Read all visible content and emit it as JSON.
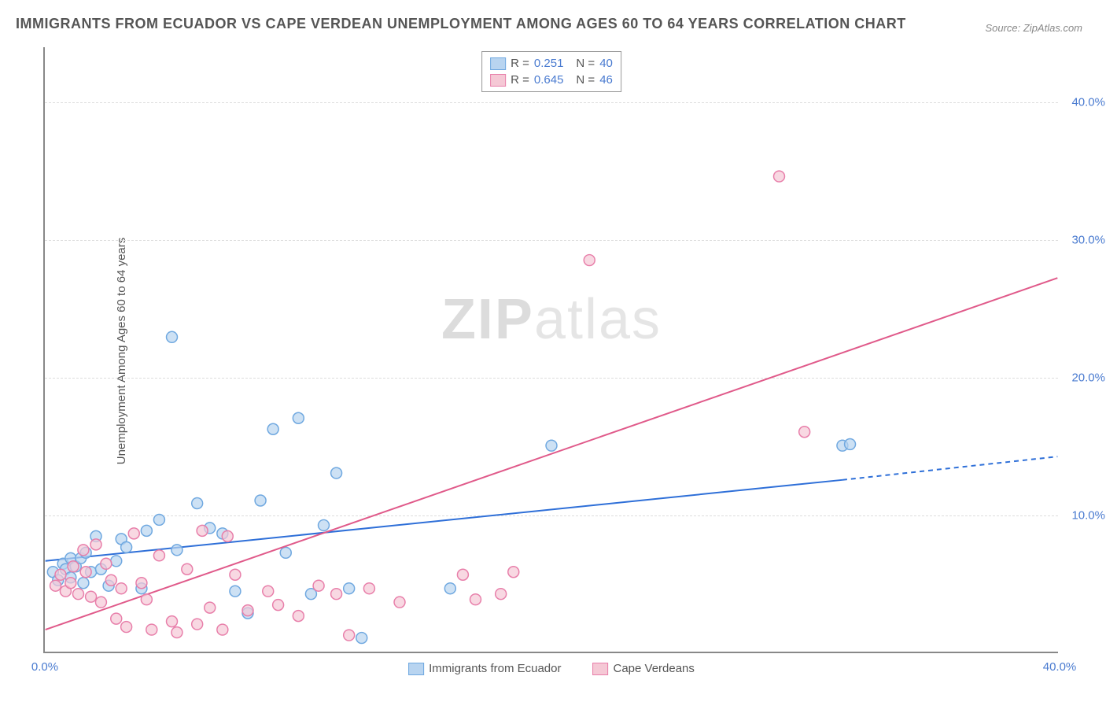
{
  "title": "IMMIGRANTS FROM ECUADOR VS CAPE VERDEAN UNEMPLOYMENT AMONG AGES 60 TO 64 YEARS CORRELATION CHART",
  "source": "Source: ZipAtlas.com",
  "y_axis_label": "Unemployment Among Ages 60 to 64 years",
  "watermark_bold": "ZIP",
  "watermark_rest": "atlas",
  "chart": {
    "type": "scatter",
    "xlim": [
      0,
      40
    ],
    "ylim": [
      0,
      44
    ],
    "x_ticks": [
      0,
      40
    ],
    "x_tick_labels": [
      "0.0%",
      "40.0%"
    ],
    "y_ticks": [
      10,
      20,
      30,
      40
    ],
    "y_tick_labels": [
      "10.0%",
      "20.0%",
      "30.0%",
      "40.0%"
    ],
    "background_color": "#ffffff",
    "grid_color": "#dddddd",
    "marker_radius": 7,
    "marker_stroke_width": 1.5,
    "line_width": 2
  },
  "series": [
    {
      "name": "Immigrants from Ecuador",
      "marker_fill": "#b8d4f0",
      "marker_stroke": "#6fa8e0",
      "line_color": "#2e6fd8",
      "R": "0.251",
      "N": "40",
      "trend": {
        "x1": 0,
        "y1": 6.6,
        "x2": 31.5,
        "y2": 12.5,
        "dash_from_x": 31.5,
        "dash_to_x": 40,
        "dash_to_y": 14.2
      },
      "points": [
        [
          0.3,
          5.8
        ],
        [
          0.5,
          5.2
        ],
        [
          0.7,
          6.4
        ],
        [
          0.8,
          6.0
        ],
        [
          1.0,
          6.8
        ],
        [
          1.0,
          5.4
        ],
        [
          1.2,
          6.2
        ],
        [
          1.4,
          6.8
        ],
        [
          1.5,
          5.0
        ],
        [
          1.6,
          7.2
        ],
        [
          1.8,
          5.8
        ],
        [
          2.0,
          8.4
        ],
        [
          2.2,
          6.0
        ],
        [
          2.5,
          4.8
        ],
        [
          2.8,
          6.6
        ],
        [
          3.0,
          8.2
        ],
        [
          3.2,
          7.6
        ],
        [
          3.8,
          4.6
        ],
        [
          4.0,
          8.8
        ],
        [
          4.5,
          9.6
        ],
        [
          5.0,
          22.9
        ],
        [
          5.2,
          7.4
        ],
        [
          6.0,
          10.8
        ],
        [
          6.5,
          9.0
        ],
        [
          7.0,
          8.6
        ],
        [
          7.5,
          4.4
        ],
        [
          8.0,
          2.8
        ],
        [
          8.5,
          11.0
        ],
        [
          9.0,
          16.2
        ],
        [
          9.5,
          7.2
        ],
        [
          10.0,
          17.0
        ],
        [
          10.5,
          4.2
        ],
        [
          11.0,
          9.2
        ],
        [
          11.5,
          13.0
        ],
        [
          12.0,
          4.6
        ],
        [
          12.5,
          1.0
        ],
        [
          16.0,
          4.6
        ],
        [
          20.0,
          15.0
        ],
        [
          31.5,
          15.0
        ],
        [
          31.8,
          15.1
        ]
      ]
    },
    {
      "name": "Cape Verdeans",
      "marker_fill": "#f5c8d5",
      "marker_stroke": "#e87faa",
      "line_color": "#e05a8a",
      "R": "0.645",
      "N": "46",
      "trend": {
        "x1": 0,
        "y1": 1.6,
        "x2": 40,
        "y2": 27.2
      },
      "points": [
        [
          0.4,
          4.8
        ],
        [
          0.6,
          5.6
        ],
        [
          0.8,
          4.4
        ],
        [
          1.0,
          5.0
        ],
        [
          1.1,
          6.2
        ],
        [
          1.3,
          4.2
        ],
        [
          1.5,
          7.4
        ],
        [
          1.6,
          5.8
        ],
        [
          1.8,
          4.0
        ],
        [
          2.0,
          7.8
        ],
        [
          2.2,
          3.6
        ],
        [
          2.4,
          6.4
        ],
        [
          2.6,
          5.2
        ],
        [
          2.8,
          2.4
        ],
        [
          3.0,
          4.6
        ],
        [
          3.2,
          1.8
        ],
        [
          3.5,
          8.6
        ],
        [
          3.8,
          5.0
        ],
        [
          4.0,
          3.8
        ],
        [
          4.2,
          1.6
        ],
        [
          4.5,
          7.0
        ],
        [
          5.0,
          2.2
        ],
        [
          5.2,
          1.4
        ],
        [
          5.6,
          6.0
        ],
        [
          6.0,
          2.0
        ],
        [
          6.2,
          8.8
        ],
        [
          6.5,
          3.2
        ],
        [
          7.0,
          1.6
        ],
        [
          7.2,
          8.4
        ],
        [
          7.5,
          5.6
        ],
        [
          8.0,
          3.0
        ],
        [
          8.8,
          4.4
        ],
        [
          9.2,
          3.4
        ],
        [
          10.0,
          2.6
        ],
        [
          10.8,
          4.8
        ],
        [
          11.5,
          4.2
        ],
        [
          12.0,
          1.2
        ],
        [
          12.8,
          4.6
        ],
        [
          14.0,
          3.6
        ],
        [
          16.5,
          5.6
        ],
        [
          17.0,
          3.8
        ],
        [
          18.0,
          4.2
        ],
        [
          18.5,
          5.8
        ],
        [
          21.5,
          28.5
        ],
        [
          29.0,
          34.6
        ],
        [
          30.0,
          16.0
        ]
      ]
    }
  ],
  "legend_top": {
    "r_label": "R =",
    "n_label": "N ="
  },
  "legend_bottom": [
    {
      "label": "Immigrants from Ecuador",
      "fill": "#b8d4f0",
      "stroke": "#6fa8e0"
    },
    {
      "label": "Cape Verdeans",
      "fill": "#f5c8d5",
      "stroke": "#e87faa"
    }
  ]
}
